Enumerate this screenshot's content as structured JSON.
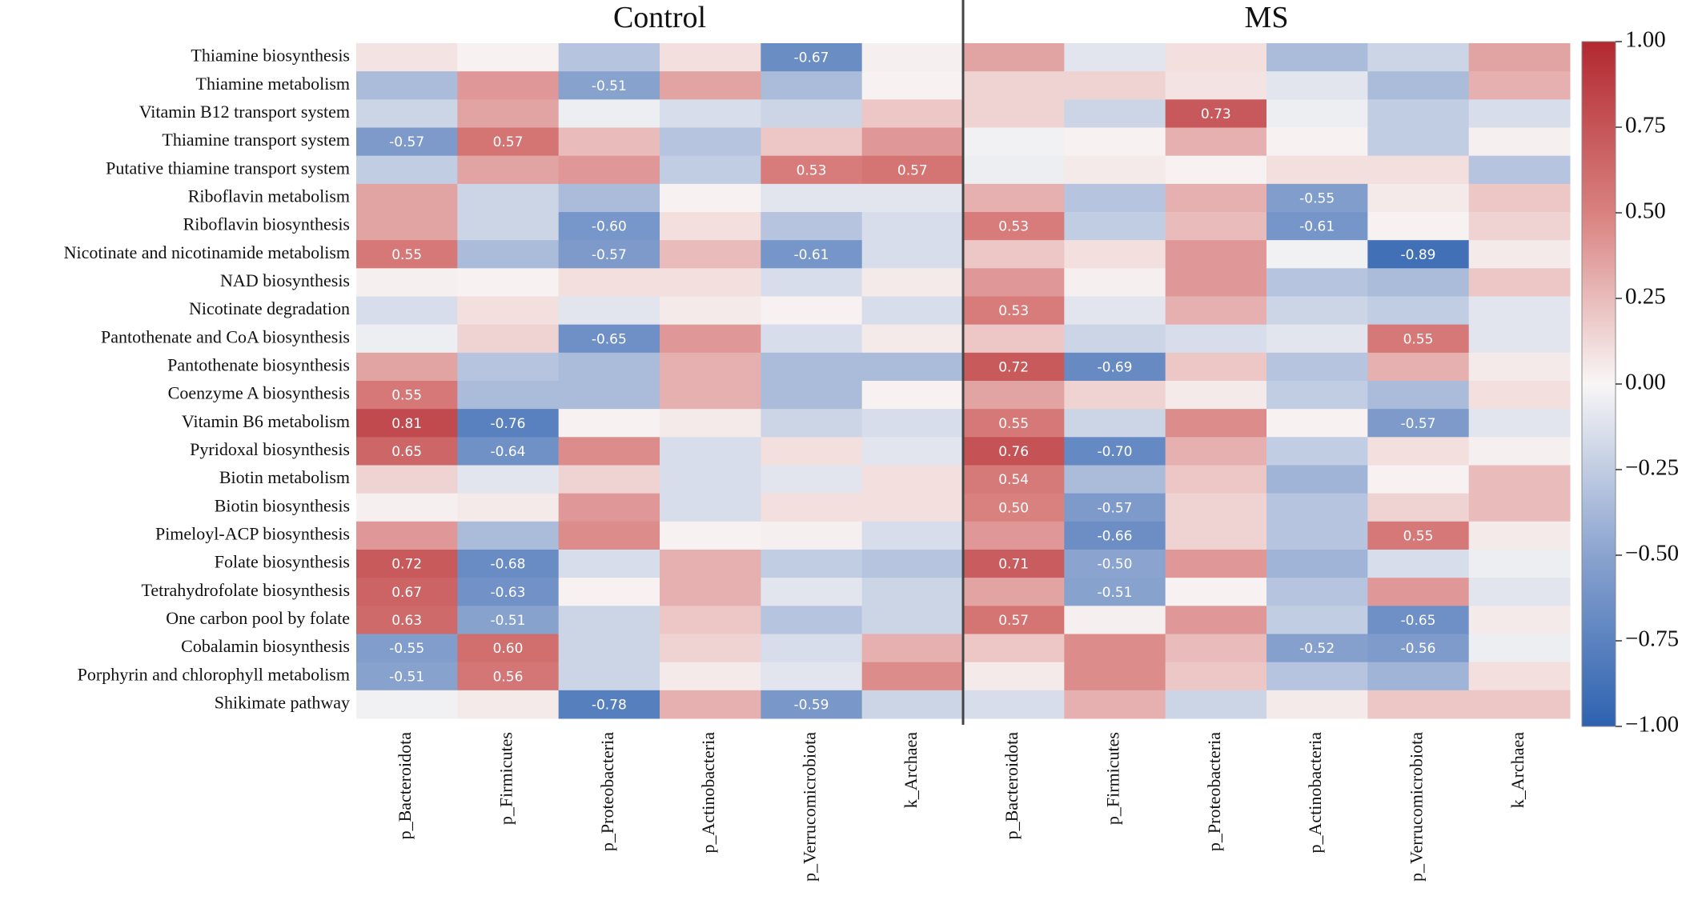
{
  "chart_data": {
    "type": "heatmap",
    "rows": [
      "Thiamine biosynthesis",
      "Thiamine metabolism",
      "Vitamin B12 transport system",
      "Thiamine transport system",
      "Putative thiamine transport system",
      "Riboflavin metabolism",
      "Riboflavin biosynthesis",
      "Nicotinate and nicotinamide metabolism",
      "NAD biosynthesis",
      "Nicotinate degradation",
      "Pantothenate and CoA biosynthesis",
      "Pantothenate biosynthesis",
      "Coenzyme A biosynthesis",
      "Vitamin B6 metabolism",
      "Pyridoxal biosynthesis",
      "Biotin metabolism",
      "Biotin biosynthesis",
      "Pimeloyl-ACP biosynthesis",
      "Folate biosynthesis",
      "Tetrahydrofolate biosynthesis",
      "One carbon pool by folate",
      "Cobalamin biosynthesis",
      "Porphyrin and chlorophyll metabolism",
      "Shikimate pathway"
    ],
    "panels": [
      {
        "title": "Control",
        "columns": [
          "p_Bacteroidota",
          "p_Firmicutes",
          "p_Proteobacteria",
          "p_Actinobacteria",
          "p_Verrucomicrobiota",
          "k_Archaea"
        ],
        "values": [
          [
            0.08,
            0.02,
            -0.3,
            0.1,
            -0.67,
            0.03
          ],
          [
            -0.35,
            0.4,
            -0.51,
            0.35,
            -0.35,
            0.02
          ],
          [
            -0.2,
            0.35,
            -0.05,
            -0.15,
            -0.2,
            0.2
          ],
          [
            -0.57,
            0.57,
            0.25,
            -0.3,
            0.2,
            0.4
          ],
          [
            -0.25,
            0.35,
            0.4,
            -0.25,
            0.53,
            0.57
          ],
          [
            0.35,
            -0.2,
            -0.35,
            0.02,
            -0.1,
            -0.1
          ],
          [
            0.35,
            -0.2,
            -0.6,
            0.1,
            -0.3,
            -0.15
          ],
          [
            0.55,
            -0.35,
            -0.57,
            0.25,
            -0.61,
            -0.15
          ],
          [
            0.03,
            0.02,
            0.1,
            0.1,
            -0.15,
            0.05
          ],
          [
            -0.15,
            0.1,
            -0.1,
            0.05,
            0.02,
            -0.15
          ],
          [
            -0.05,
            0.15,
            -0.65,
            0.4,
            -0.15,
            0.05
          ],
          [
            0.35,
            -0.3,
            -0.35,
            0.3,
            -0.35,
            -0.35
          ],
          [
            0.55,
            -0.35,
            -0.35,
            0.3,
            -0.35,
            0.02
          ],
          [
            0.81,
            -0.76,
            0.02,
            0.05,
            -0.2,
            -0.15
          ],
          [
            0.65,
            -0.64,
            0.45,
            -0.15,
            0.1,
            -0.1
          ],
          [
            0.15,
            -0.1,
            0.15,
            -0.15,
            -0.1,
            0.1
          ],
          [
            0.03,
            0.05,
            0.4,
            -0.15,
            0.1,
            0.1
          ],
          [
            0.4,
            -0.35,
            0.45,
            0.02,
            0.03,
            -0.15
          ],
          [
            0.72,
            -0.68,
            -0.15,
            0.3,
            -0.25,
            -0.3
          ],
          [
            0.67,
            -0.63,
            0.02,
            0.3,
            -0.1,
            -0.2
          ],
          [
            0.63,
            -0.51,
            -0.2,
            0.2,
            -0.3,
            -0.2
          ],
          [
            -0.55,
            0.6,
            -0.2,
            0.15,
            -0.15,
            0.3
          ],
          [
            -0.51,
            0.56,
            -0.2,
            0.05,
            -0.1,
            0.45
          ],
          [
            -0.03,
            0.05,
            -0.78,
            0.3,
            -0.59,
            -0.2
          ]
        ],
        "value_labels": [
          [
            null,
            null,
            null,
            null,
            "-0.67",
            null
          ],
          [
            null,
            null,
            "-0.51",
            null,
            null,
            null
          ],
          [
            null,
            null,
            null,
            null,
            null,
            null
          ],
          [
            "-0.57",
            "0.57",
            null,
            null,
            null,
            null
          ],
          [
            null,
            null,
            null,
            null,
            "0.53",
            "0.57"
          ],
          [
            null,
            null,
            null,
            null,
            null,
            null
          ],
          [
            null,
            null,
            "-0.60",
            null,
            null,
            null
          ],
          [
            "0.55",
            null,
            "-0.57",
            null,
            "-0.61",
            null
          ],
          [
            null,
            null,
            null,
            null,
            null,
            null
          ],
          [
            null,
            null,
            null,
            null,
            null,
            null
          ],
          [
            null,
            null,
            "-0.65",
            null,
            null,
            null
          ],
          [
            null,
            null,
            null,
            null,
            null,
            null
          ],
          [
            "0.55",
            null,
            null,
            null,
            null,
            null
          ],
          [
            "0.81",
            "-0.76",
            null,
            null,
            null,
            null
          ],
          [
            "0.65",
            "-0.64",
            null,
            null,
            null,
            null
          ],
          [
            null,
            null,
            null,
            null,
            null,
            null
          ],
          [
            null,
            null,
            null,
            null,
            null,
            null
          ],
          [
            null,
            null,
            null,
            null,
            null,
            null
          ],
          [
            "0.72",
            "-0.68",
            null,
            null,
            null,
            null
          ],
          [
            "0.67",
            "-0.63",
            null,
            null,
            null,
            null
          ],
          [
            "0.63",
            "-0.51",
            null,
            null,
            null,
            null
          ],
          [
            "-0.55",
            "0.60",
            null,
            null,
            null,
            null
          ],
          [
            "-0.51",
            "0.56",
            null,
            null,
            null,
            null
          ],
          [
            null,
            null,
            "-0.78",
            null,
            "-0.59",
            null
          ]
        ]
      },
      {
        "title": "MS",
        "columns": [
          "p_Bacteroidota",
          "p_Firmicutes",
          "p_Proteobacteria",
          "p_Actinobacteria",
          "p_Verrucomicrobiota",
          "k_Archaea"
        ],
        "values": [
          [
            0.35,
            -0.1,
            0.1,
            -0.35,
            -0.2,
            0.35
          ],
          [
            0.15,
            0.15,
            0.08,
            -0.1,
            -0.35,
            0.3
          ],
          [
            0.15,
            -0.2,
            0.73,
            -0.05,
            -0.25,
            -0.15
          ],
          [
            -0.03,
            0.02,
            0.3,
            0.02,
            -0.25,
            0.03
          ],
          [
            -0.05,
            0.05,
            0.02,
            0.1,
            0.1,
            -0.3
          ],
          [
            0.3,
            -0.3,
            0.3,
            -0.55,
            0.05,
            0.2
          ],
          [
            0.53,
            -0.25,
            0.25,
            -0.61,
            0.02,
            0.15
          ],
          [
            0.2,
            0.1,
            0.4,
            -0.03,
            -0.89,
            0.05
          ],
          [
            0.4,
            0.03,
            0.4,
            -0.3,
            -0.35,
            0.2
          ],
          [
            0.53,
            -0.1,
            0.3,
            -0.2,
            -0.25,
            -0.1
          ],
          [
            0.2,
            -0.2,
            -0.15,
            -0.1,
            0.55,
            -0.1
          ],
          [
            0.72,
            -0.69,
            0.2,
            -0.3,
            0.3,
            0.05
          ],
          [
            0.35,
            0.15,
            0.05,
            -0.25,
            -0.35,
            0.1
          ],
          [
            0.55,
            -0.2,
            0.45,
            0.02,
            -0.57,
            -0.1
          ],
          [
            0.76,
            -0.7,
            0.3,
            -0.25,
            0.1,
            0.03
          ],
          [
            0.54,
            -0.35,
            0.2,
            -0.4,
            0.02,
            0.25
          ],
          [
            0.5,
            -0.57,
            0.15,
            -0.3,
            0.15,
            0.25
          ],
          [
            0.4,
            -0.66,
            0.15,
            -0.3,
            0.55,
            0.05
          ],
          [
            0.71,
            -0.5,
            0.4,
            -0.4,
            -0.15,
            -0.05
          ],
          [
            0.35,
            -0.51,
            0.02,
            -0.3,
            0.4,
            -0.1
          ],
          [
            0.57,
            0.03,
            0.4,
            -0.25,
            -0.65,
            0.05
          ],
          [
            0.2,
            0.45,
            0.25,
            -0.52,
            -0.56,
            -0.05
          ],
          [
            0.05,
            0.45,
            0.2,
            -0.3,
            -0.4,
            0.1
          ],
          [
            -0.15,
            0.3,
            -0.2,
            0.05,
            0.2,
            0.2
          ]
        ],
        "value_labels": [
          [
            null,
            null,
            null,
            null,
            null,
            null
          ],
          [
            null,
            null,
            null,
            null,
            null,
            null
          ],
          [
            null,
            null,
            "0.73",
            null,
            null,
            null
          ],
          [
            null,
            null,
            null,
            null,
            null,
            null
          ],
          [
            null,
            null,
            null,
            null,
            null,
            null
          ],
          [
            null,
            null,
            null,
            "-0.55",
            null,
            null
          ],
          [
            "0.53",
            null,
            null,
            "-0.61",
            null,
            null
          ],
          [
            null,
            null,
            null,
            null,
            "-0.89",
            null
          ],
          [
            null,
            null,
            null,
            null,
            null,
            null
          ],
          [
            "0.53",
            null,
            null,
            null,
            null,
            null
          ],
          [
            null,
            null,
            null,
            null,
            "0.55",
            null
          ],
          [
            "0.72",
            "-0.69",
            null,
            null,
            null,
            null
          ],
          [
            null,
            null,
            null,
            null,
            null,
            null
          ],
          [
            "0.55",
            null,
            null,
            null,
            "-0.57",
            null
          ],
          [
            "0.76",
            "-0.70",
            null,
            null,
            null,
            null
          ],
          [
            "0.54",
            null,
            null,
            null,
            null,
            null
          ],
          [
            "0.50",
            "-0.57",
            null,
            null,
            null,
            null
          ],
          [
            null,
            "-0.66",
            null,
            null,
            "0.55",
            null
          ],
          [
            "0.71",
            "-0.50",
            null,
            null,
            null,
            null
          ],
          [
            null,
            "-0.51",
            null,
            null,
            null,
            null
          ],
          [
            "0.57",
            null,
            null,
            null,
            "-0.65",
            null
          ],
          [
            null,
            null,
            null,
            "-0.52",
            "-0.56",
            null
          ],
          [
            null,
            null,
            null,
            null,
            null,
            null
          ],
          [
            null,
            null,
            null,
            null,
            null,
            null
          ]
        ]
      }
    ],
    "vlim": [
      -1,
      1
    ],
    "colorbar_ticks": [
      {
        "value": 1,
        "label": "1.00"
      },
      {
        "value": 0.75,
        "label": "0.75"
      },
      {
        "value": 0.5,
        "label": "0.50"
      },
      {
        "value": 0.25,
        "label": "0.25"
      },
      {
        "value": 0,
        "label": "0.00"
      },
      {
        "value": -0.25,
        "label": "−0.25"
      },
      {
        "value": -0.5,
        "label": "−0.50"
      },
      {
        "value": -0.75,
        "label": "−0.75"
      },
      {
        "value": -1,
        "label": "−1.00"
      }
    ]
  }
}
